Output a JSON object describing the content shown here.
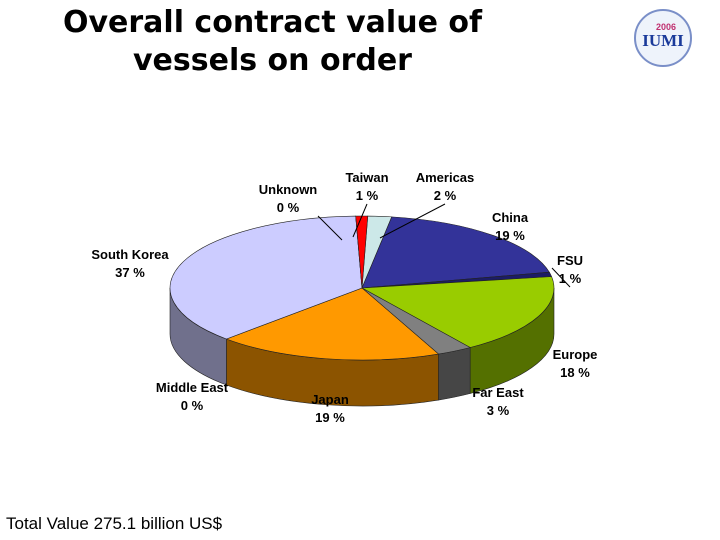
{
  "chart_data": {
    "type": "pie",
    "title": "Overall contract value of vessels on order",
    "categories": [
      "Americas",
      "China",
      "FSU",
      "Europe",
      "Far East",
      "Japan",
      "Middle East",
      "South Korea",
      "Unknown",
      "Taiwan"
    ],
    "values": [
      2,
      19,
      1,
      18,
      3,
      19,
      0,
      37,
      0,
      1
    ],
    "value_labels": [
      "2 %",
      "19 %",
      "1 %",
      "18 %",
      "3 %",
      "19 %",
      "0 %",
      "37 %",
      "0 %",
      "1 %"
    ],
    "colors": [
      "#cce8e8",
      "#333399",
      "#1c1c66",
      "#99cc00",
      "#808080",
      "#ff9900",
      "#003366",
      "#ccccff",
      "#663300",
      "#ff0000"
    ],
    "note": "Total Value 275.1 billion US$"
  },
  "logo": {
    "year": "2006",
    "name": "IUMI"
  }
}
